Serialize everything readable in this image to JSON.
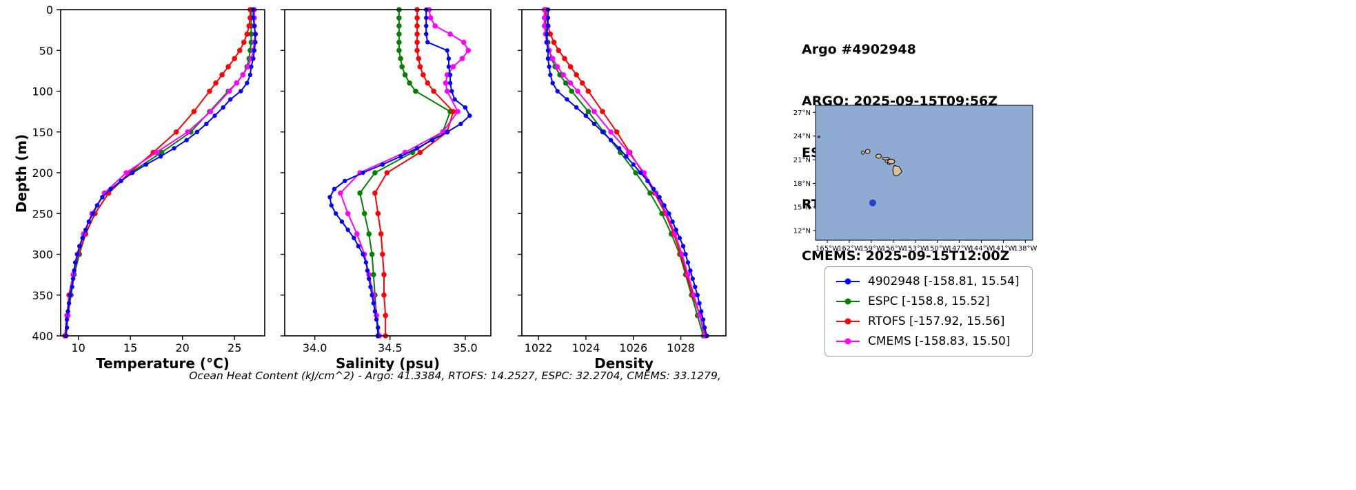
{
  "header": {
    "title": "Argo #4902948",
    "argo_time": "ARGO: 2025-09-15T09:56Z",
    "espc_time": "ESPC : 2025-09-15T09:00Z",
    "rtofs_time": "RTOFS: 2025-09-15T12:00Z",
    "cmems_time": "CMEMS: 2025-09-15T12:00Z"
  },
  "footer": {
    "ocean_heat_content": "Ocean Heat Content (kJ/cm^2) - Argo: 41.3384,  RTOFS: 14.2527,  ESPC: 32.2704,  CMEMS: 33.1279,"
  },
  "legend": {
    "items": [
      {
        "name": "4902948",
        "label": "4902948 [-158.81, 15.54]",
        "color": "#0000ff"
      },
      {
        "name": "ESPC",
        "label": "ESPC [-158.8, 15.52]",
        "color": "#008000"
      },
      {
        "name": "RTOFS",
        "label": "RTOFS [-157.92, 15.56]",
        "color": "#ff0000"
      },
      {
        "name": "CMEMS",
        "label": "CMEMS [-158.83, 15.50]",
        "color": "#ff00ff"
      }
    ]
  },
  "map": {
    "ocean_color": "#8fabd3",
    "land_color": "#d9c29a",
    "lon_range": [
      -166.6,
      -137.0
    ],
    "lat_range": [
      10.8,
      27.9
    ],
    "xticks": [
      -165,
      -162,
      -159,
      -156,
      -153,
      -150,
      -147,
      -144,
      -141,
      -138
    ],
    "xtick_labels": [
      "165°W",
      "162°W",
      "159°W",
      "156°W",
      "153°W",
      "150°W",
      "147°W",
      "144°W",
      "141°W",
      "138°W"
    ],
    "yticks": [
      12,
      15,
      18,
      21,
      24,
      27
    ],
    "ytick_labels": [
      "12°N",
      "15°N",
      "18°N",
      "21°N",
      "24°N",
      "27°N"
    ],
    "float_marker": {
      "lon": -158.81,
      "lat": 15.54,
      "color": "#2244cc"
    },
    "islands": [
      {
        "type": "dot",
        "lon": -166.15,
        "lat": 23.9,
        "rx": 1.5,
        "ry": 1
      },
      {
        "type": "dot",
        "lon": -160.15,
        "lat": 21.9,
        "rx": 2,
        "ry": 2.4
      },
      {
        "type": "dot",
        "lon": -159.5,
        "lat": 22.05,
        "rx": 3.4,
        "ry": 3
      },
      {
        "type": "dot",
        "lon": -158.0,
        "lat": 21.45,
        "rx": 4,
        "ry": 3
      },
      {
        "type": "dot",
        "lon": -157.0,
        "lat": 21.15,
        "rx": 5,
        "ry": 1.8
      },
      {
        "type": "dot",
        "lon": -156.92,
        "lat": 20.82,
        "rx": 2.2,
        "ry": 1.8
      },
      {
        "type": "dot",
        "lon": -156.6,
        "lat": 20.53,
        "rx": 2,
        "ry": 1.5
      },
      {
        "type": "dot",
        "lon": -156.28,
        "lat": 20.78,
        "rx": 5,
        "ry": 3.4
      },
      {
        "type": "polygon",
        "points": [
          [
            -155.87,
            20.27
          ],
          [
            -155.2,
            20.13
          ],
          [
            -154.81,
            19.5
          ],
          [
            -155.22,
            19.1
          ],
          [
            -155.6,
            18.92
          ],
          [
            -155.92,
            19.07
          ],
          [
            -156.07,
            19.62
          ],
          [
            -155.99,
            20.05
          ]
        ]
      }
    ]
  },
  "chart_data": [
    {
      "type": "line",
      "title": "",
      "xlabel": "Temperature (°C)",
      "ylabel": "Depth (m)",
      "xlim": [
        8.3,
        27.9
      ],
      "ylim": [
        0,
        400
      ],
      "xticks": [
        10,
        15,
        20,
        25
      ],
      "xtick_labels": [
        "10",
        "15",
        "20",
        "25"
      ],
      "yticks": [
        0,
        50,
        100,
        150,
        200,
        250,
        300,
        350,
        400
      ],
      "ytick_labels": [
        "0",
        "50",
        "100",
        "150",
        "200",
        "250",
        "300",
        "350",
        "400"
      ],
      "show_ytick_labels": true,
      "grid": false,
      "series": [
        {
          "name": "ESPC",
          "color": "#008000",
          "marker_size": 3.8,
          "depths": [
            0,
            10,
            20,
            30,
            40,
            50,
            60,
            70,
            80,
            90,
            100,
            125,
            150,
            175,
            200,
            225,
            250,
            275,
            300,
            325,
            350,
            375,
            400
          ],
          "values": [
            26.6,
            26.6,
            26.6,
            26.6,
            26.6,
            26.5,
            26.4,
            26.2,
            25.8,
            25.2,
            24.4,
            22.6,
            20.8,
            18.0,
            15.0,
            12.9,
            11.6,
            10.7,
            10.1,
            9.6,
            9.3,
            9.0,
            8.8
          ]
        },
        {
          "name": "RTOFS",
          "color": "#ff0000",
          "marker_size": 3.8,
          "depths": [
            0,
            10,
            20,
            30,
            40,
            50,
            60,
            70,
            80,
            90,
            100,
            125,
            150,
            175,
            200,
            225,
            250,
            275,
            300,
            325,
            350,
            375,
            400
          ],
          "values": [
            26.5,
            26.5,
            26.4,
            26.2,
            25.9,
            25.5,
            25.0,
            24.4,
            23.8,
            23.2,
            22.6,
            21.1,
            19.4,
            17.2,
            14.9,
            12.9,
            11.6,
            10.7,
            10.0,
            9.5,
            9.1,
            8.9,
            8.7
          ]
        },
        {
          "name": "CMEMS",
          "color": "#ff00ff",
          "marker_size": 3.8,
          "depths": [
            0,
            10,
            20,
            30,
            40,
            50,
            60,
            70,
            80,
            90,
            100,
            125,
            150,
            175,
            200,
            225,
            250,
            275,
            300,
            325,
            350,
            375,
            400
          ],
          "values": [
            26.9,
            26.9,
            26.9,
            27.0,
            26.9,
            26.8,
            26.6,
            26.3,
            25.8,
            25.2,
            24.5,
            22.7,
            20.5,
            17.5,
            14.6,
            12.5,
            11.3,
            10.5,
            9.9,
            9.5,
            9.2,
            9.0,
            8.8
          ]
        },
        {
          "name": "4902948",
          "color": "#0000ff",
          "marker_size": 3.2,
          "depths": [
            0,
            10,
            20,
            30,
            40,
            50,
            60,
            70,
            80,
            90,
            100,
            110,
            120,
            130,
            140,
            150,
            160,
            170,
            180,
            190,
            200,
            210,
            220,
            230,
            240,
            250,
            260,
            270,
            280,
            290,
            300,
            310,
            320,
            330,
            340,
            350,
            360,
            370,
            380,
            390,
            400
          ],
          "values": [
            26.8,
            26.8,
            26.9,
            27.0,
            27.0,
            26.9,
            26.8,
            26.6,
            26.5,
            26.2,
            25.6,
            24.6,
            23.9,
            23.1,
            22.3,
            21.4,
            20.4,
            19.2,
            17.9,
            16.5,
            15.2,
            14.1,
            13.1,
            12.3,
            11.8,
            11.4,
            11.0,
            10.7,
            10.4,
            10.1,
            9.9,
            9.7,
            9.6,
            9.5,
            9.4,
            9.2,
            9.1,
            9.0,
            8.9,
            8.9,
            8.8
          ]
        }
      ]
    },
    {
      "type": "line",
      "title": "",
      "xlabel": "Salinity (psu)",
      "ylabel": "",
      "xlim": [
        33.8,
        35.17
      ],
      "ylim": [
        0,
        400
      ],
      "xticks": [
        34.0,
        34.5,
        35.0
      ],
      "xtick_labels": [
        "34.0",
        "34.5",
        "35.0"
      ],
      "yticks": [
        0,
        50,
        100,
        150,
        200,
        250,
        300,
        350,
        400
      ],
      "ytick_labels": [
        "0",
        "50",
        "100",
        "150",
        "200",
        "250",
        "300",
        "350",
        "400"
      ],
      "show_ytick_labels": false,
      "grid": false,
      "series": [
        {
          "name": "ESPC",
          "color": "#008000",
          "marker_size": 3.8,
          "depths": [
            0,
            10,
            20,
            30,
            40,
            50,
            60,
            70,
            80,
            90,
            100,
            125,
            150,
            175,
            200,
            225,
            250,
            275,
            300,
            325,
            350,
            375,
            400
          ],
          "values": [
            34.56,
            34.56,
            34.56,
            34.56,
            34.56,
            34.56,
            34.57,
            34.58,
            34.6,
            34.63,
            34.67,
            34.9,
            34.85,
            34.65,
            34.4,
            34.3,
            34.33,
            34.36,
            34.38,
            34.39,
            34.4,
            34.41,
            34.42
          ]
        },
        {
          "name": "RTOFS",
          "color": "#ff0000",
          "marker_size": 3.8,
          "depths": [
            0,
            10,
            20,
            30,
            40,
            50,
            60,
            70,
            80,
            90,
            100,
            125,
            150,
            175,
            200,
            225,
            250,
            275,
            300,
            325,
            350,
            375,
            400
          ],
          "values": [
            34.68,
            34.68,
            34.68,
            34.68,
            34.68,
            34.68,
            34.69,
            34.7,
            34.72,
            34.75,
            34.79,
            34.92,
            34.88,
            34.7,
            34.48,
            34.4,
            34.42,
            34.44,
            34.45,
            34.46,
            34.46,
            34.47,
            34.47
          ]
        },
        {
          "name": "CMEMS",
          "color": "#ff00ff",
          "marker_size": 3.8,
          "depths": [
            0,
            10,
            20,
            30,
            40,
            50,
            60,
            70,
            80,
            90,
            100,
            125,
            150,
            175,
            200,
            225,
            250,
            275,
            300,
            325,
            350,
            375,
            400
          ],
          "values": [
            34.76,
            34.77,
            34.8,
            34.9,
            34.99,
            35.02,
            34.98,
            34.92,
            34.88,
            34.87,
            34.88,
            34.95,
            34.85,
            34.6,
            34.3,
            34.17,
            34.22,
            34.28,
            34.33,
            34.36,
            34.39,
            34.41,
            34.43
          ]
        },
        {
          "name": "4902948",
          "color": "#0000ff",
          "marker_size": 3.2,
          "depths": [
            0,
            10,
            20,
            30,
            40,
            50,
            60,
            70,
            80,
            90,
            100,
            110,
            120,
            130,
            140,
            150,
            160,
            170,
            180,
            190,
            200,
            210,
            220,
            230,
            240,
            250,
            260,
            270,
            280,
            290,
            300,
            310,
            320,
            330,
            340,
            350,
            360,
            370,
            380,
            390,
            400
          ],
          "values": [
            34.74,
            34.74,
            34.74,
            34.74,
            34.75,
            34.88,
            34.89,
            34.89,
            34.9,
            34.9,
            34.91,
            34.93,
            35.0,
            35.03,
            34.97,
            34.88,
            34.78,
            34.68,
            34.57,
            34.45,
            34.32,
            34.2,
            34.13,
            34.1,
            34.11,
            34.14,
            34.18,
            34.22,
            34.26,
            34.29,
            34.32,
            34.34,
            34.35,
            34.36,
            34.37,
            34.38,
            34.39,
            34.4,
            34.41,
            34.42,
            34.42
          ]
        }
      ]
    },
    {
      "type": "line",
      "title": "",
      "xlabel": "Density",
      "ylabel": "",
      "xlim": [
        1021.3,
        1029.9
      ],
      "ylim": [
        0,
        400
      ],
      "xticks": [
        1022,
        1024,
        1026,
        1028
      ],
      "xtick_labels": [
        "1022",
        "1024",
        "1026",
        "1028"
      ],
      "yticks": [
        0,
        50,
        100,
        150,
        200,
        250,
        300,
        350,
        400
      ],
      "ytick_labels": [
        "0",
        "50",
        "100",
        "150",
        "200",
        "250",
        "300",
        "350",
        "400"
      ],
      "show_ytick_labels": false,
      "grid": false,
      "series": [
        {
          "name": "ESPC",
          "color": "#008000",
          "marker_size": 3.8,
          "depths": [
            0,
            10,
            20,
            30,
            40,
            50,
            60,
            70,
            80,
            90,
            100,
            125,
            150,
            175,
            200,
            225,
            250,
            275,
            300,
            325,
            350,
            375,
            400
          ],
          "values": [
            1022.3,
            1022.3,
            1022.3,
            1022.35,
            1022.4,
            1022.45,
            1022.55,
            1022.7,
            1022.9,
            1023.15,
            1023.4,
            1024.1,
            1024.75,
            1025.45,
            1026.1,
            1026.7,
            1027.2,
            1027.6,
            1027.95,
            1028.2,
            1028.45,
            1028.7,
            1028.95
          ]
        },
        {
          "name": "RTOFS",
          "color": "#ff0000",
          "marker_size": 3.8,
          "depths": [
            0,
            10,
            20,
            30,
            40,
            50,
            60,
            70,
            80,
            90,
            100,
            125,
            150,
            175,
            200,
            225,
            250,
            275,
            300,
            325,
            350,
            375,
            400
          ],
          "values": [
            1022.3,
            1022.35,
            1022.4,
            1022.5,
            1022.65,
            1022.85,
            1023.1,
            1023.35,
            1023.6,
            1023.85,
            1024.1,
            1024.7,
            1025.3,
            1025.85,
            1026.4,
            1026.9,
            1027.35,
            1027.7,
            1028.0,
            1028.25,
            1028.5,
            1028.8,
            1029.05
          ]
        },
        {
          "name": "CMEMS",
          "color": "#ff00ff",
          "marker_size": 3.8,
          "depths": [
            0,
            10,
            20,
            30,
            40,
            50,
            60,
            70,
            80,
            90,
            100,
            125,
            150,
            175,
            200,
            225,
            250,
            275,
            300,
            325,
            350,
            375,
            400
          ],
          "values": [
            1022.25,
            1022.25,
            1022.25,
            1022.3,
            1022.35,
            1022.45,
            1022.6,
            1022.8,
            1023.05,
            1023.35,
            1023.65,
            1024.35,
            1025.05,
            1025.8,
            1026.45,
            1026.95,
            1027.4,
            1027.75,
            1028.05,
            1028.3,
            1028.55,
            1028.8,
            1029.0
          ]
        },
        {
          "name": "4902948",
          "color": "#0000ff",
          "marker_size": 3.2,
          "depths": [
            0,
            10,
            20,
            30,
            40,
            50,
            60,
            70,
            80,
            90,
            100,
            110,
            120,
            130,
            140,
            150,
            160,
            170,
            180,
            190,
            200,
            210,
            220,
            230,
            240,
            250,
            260,
            270,
            280,
            290,
            300,
            310,
            320,
            330,
            340,
            350,
            360,
            370,
            380,
            390,
            400
          ],
          "values": [
            1022.4,
            1022.4,
            1022.4,
            1022.35,
            1022.35,
            1022.4,
            1022.4,
            1022.45,
            1022.5,
            1022.6,
            1022.8,
            1023.2,
            1023.6,
            1024.0,
            1024.35,
            1024.7,
            1025.05,
            1025.4,
            1025.7,
            1026.0,
            1026.3,
            1026.6,
            1026.85,
            1027.1,
            1027.3,
            1027.5,
            1027.65,
            1027.8,
            1027.95,
            1028.1,
            1028.2,
            1028.3,
            1028.4,
            1028.5,
            1028.6,
            1028.7,
            1028.78,
            1028.86,
            1028.94,
            1029.0,
            1029.1
          ]
        }
      ]
    }
  ]
}
